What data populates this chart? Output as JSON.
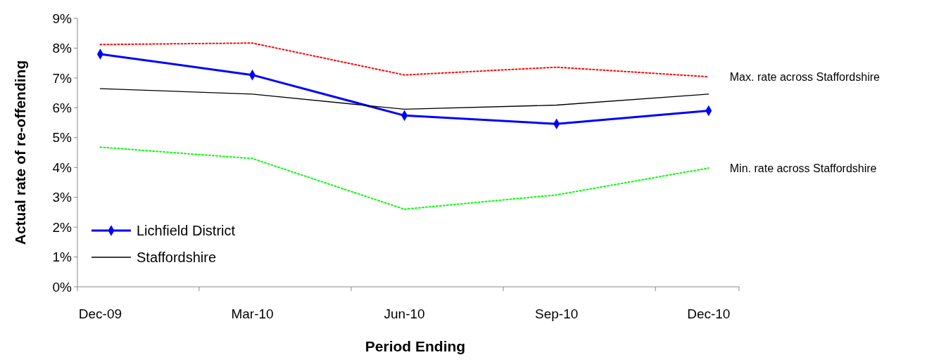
{
  "chart_data": {
    "type": "line",
    "xlabel": "Period Ending",
    "ylabel": "Actual rate of re-offending",
    "categories": [
      "Dec-09",
      "Mar-10",
      "Jun-10",
      "Sep-10",
      "Dec-10"
    ],
    "series": [
      {
        "name": "Lichfield District",
        "color": "#0000ff",
        "values": [
          7.8,
          7.1,
          5.74,
          5.46,
          5.9
        ],
        "marker": "diamond",
        "line_style": "solid"
      },
      {
        "name": "Staffordshire",
        "color": "#000000",
        "values": [
          6.64,
          6.46,
          5.95,
          6.09,
          6.46
        ],
        "marker": "none",
        "line_style": "solid"
      },
      {
        "name": "Max. rate across Staffordshire",
        "color": "#ff0000",
        "values": [
          8.12,
          8.17,
          7.1,
          7.36,
          7.04
        ],
        "marker": "none",
        "line_style": "dotted"
      },
      {
        "name": "Min. rate across Staffordshire",
        "color": "#00ff00",
        "values": [
          4.68,
          4.3,
          2.6,
          3.08,
          3.98
        ],
        "marker": "none",
        "line_style": "dotted"
      }
    ],
    "ylim": [
      0,
      9
    ],
    "yticks": [
      {
        "value": 0,
        "label": "0%"
      },
      {
        "value": 1,
        "label": "1%"
      },
      {
        "value": 2,
        "label": "2%"
      },
      {
        "value": 3,
        "label": "3%"
      },
      {
        "value": 4,
        "label": "4%"
      },
      {
        "value": 5,
        "label": "5%"
      },
      {
        "value": 6,
        "label": "6%"
      },
      {
        "value": 7,
        "label": "7%"
      },
      {
        "value": 8,
        "label": "8%"
      },
      {
        "value": 9,
        "label": "9%"
      }
    ],
    "grid": false,
    "legend": "bottom left"
  }
}
